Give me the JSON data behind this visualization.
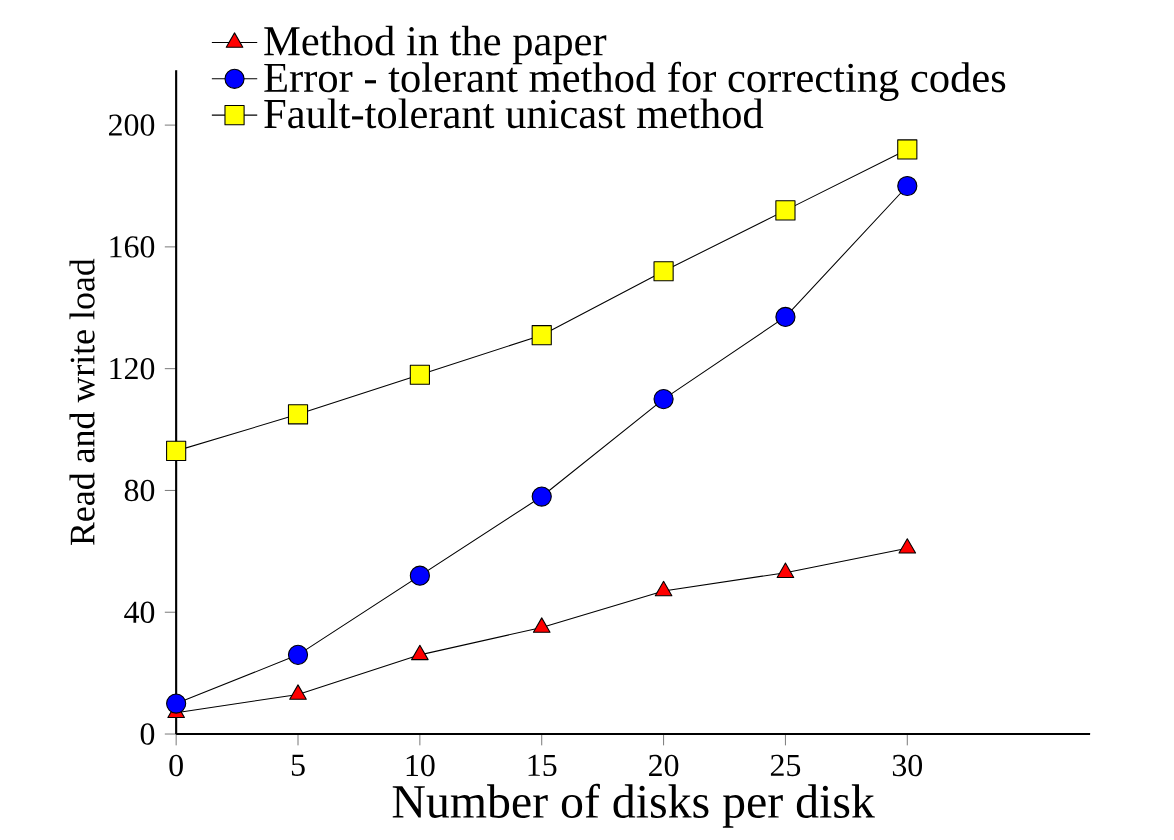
{
  "chart_data": {
    "type": "line",
    "xlabel": "Number of disks per disk",
    "ylabel": "Read and write load",
    "x": [
      0,
      5,
      10,
      15,
      20,
      25,
      30
    ],
    "series": [
      {
        "name": "Method in the paper",
        "color": "#ff0000",
        "marker": "triangle",
        "values": [
          7,
          13,
          26,
          35,
          47,
          53,
          61
        ]
      },
      {
        "name": "Error - tolerant method for correcting codes",
        "color": "#0000ff",
        "marker": "circle",
        "values": [
          10,
          26,
          52,
          78,
          110,
          137,
          180
        ]
      },
      {
        "name": "Fault-tolerant unicast method",
        "color": "#ffff00",
        "marker": "square",
        "values": [
          93,
          105,
          118,
          131,
          152,
          172,
          192
        ]
      }
    ],
    "xlim": [
      0,
      37.5
    ],
    "ylim": [
      0,
      218
    ],
    "xticks": [
      0,
      5,
      10,
      15,
      20,
      25,
      30
    ],
    "yticks": [
      0,
      40,
      80,
      120,
      160,
      200
    ],
    "legend": "top",
    "grid": false,
    "line_style": "solid"
  }
}
